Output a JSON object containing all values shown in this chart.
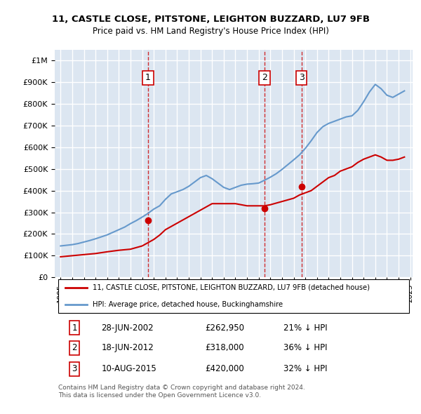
{
  "title": "11, CASTLE CLOSE, PITSTONE, LEIGHTON BUZZARD, LU7 9FB",
  "subtitle": "Price paid vs. HM Land Registry's House Price Index (HPI)",
  "ylabel_ticks": [
    "£0",
    "£100K",
    "£200K",
    "£300K",
    "£400K",
    "£500K",
    "£600K",
    "£700K",
    "£800K",
    "£900K",
    "£1M"
  ],
  "ytick_values": [
    0,
    100000,
    200000,
    300000,
    400000,
    500000,
    600000,
    700000,
    800000,
    900000,
    1000000
  ],
  "ylim": [
    0,
    1050000
  ],
  "sale_dates": [
    "2002-06-28",
    "2012-06-18",
    "2015-08-10"
  ],
  "sale_prices": [
    262950,
    318000,
    420000
  ],
  "sale_labels": [
    "1",
    "2",
    "3"
  ],
  "legend_line1": "11, CASTLE CLOSE, PITSTONE, LEIGHTON BUZZARD, LU7 9FB (detached house)",
  "legend_line2": "HPI: Average price, detached house, Buckinghamshire",
  "table_rows": [
    [
      "1",
      "28-JUN-2002",
      "£262,950",
      "21% ↓ HPI"
    ],
    [
      "2",
      "18-JUN-2012",
      "£318,000",
      "36% ↓ HPI"
    ],
    [
      "3",
      "10-AUG-2015",
      "£420,000",
      "32% ↓ HPI"
    ]
  ],
  "footnote": "Contains HM Land Registry data © Crown copyright and database right 2024.\nThis data is licensed under the Open Government Licence v3.0.",
  "red_color": "#cc0000",
  "blue_color": "#6699cc",
  "background_color": "#dce6f1",
  "plot_bg_color": "#dce6f1",
  "grid_color": "#ffffff",
  "hpi_years": [
    1995,
    1995.5,
    1996,
    1996.5,
    1997,
    1997.5,
    1998,
    1998.5,
    1999,
    1999.5,
    2000,
    2000.5,
    2001,
    2001.5,
    2002,
    2002.5,
    2003,
    2003.5,
    2004,
    2004.5,
    2005,
    2005.5,
    2006,
    2006.5,
    2007,
    2007.5,
    2008,
    2008.5,
    2009,
    2009.5,
    2010,
    2010.5,
    2011,
    2011.5,
    2012,
    2012.5,
    2013,
    2013.5,
    2014,
    2014.5,
    2015,
    2015.5,
    2016,
    2016.5,
    2017,
    2017.5,
    2018,
    2018.5,
    2019,
    2019.5,
    2020,
    2020.5,
    2021,
    2021.5,
    2022,
    2022.5,
    2023,
    2023.5,
    2024,
    2024.5
  ],
  "hpi_values": [
    145000,
    148000,
    151000,
    156000,
    163000,
    170000,
    178000,
    187000,
    196000,
    208000,
    220000,
    232000,
    248000,
    262000,
    278000,
    295000,
    315000,
    330000,
    360000,
    385000,
    395000,
    405000,
    420000,
    440000,
    460000,
    470000,
    455000,
    435000,
    415000,
    405000,
    415000,
    425000,
    430000,
    432000,
    435000,
    448000,
    462000,
    478000,
    498000,
    520000,
    542000,
    565000,
    595000,
    630000,
    668000,
    695000,
    710000,
    720000,
    730000,
    740000,
    745000,
    770000,
    810000,
    855000,
    890000,
    870000,
    840000,
    830000,
    845000,
    860000
  ],
  "price_years": [
    1995,
    1996,
    1997,
    1998,
    1999,
    2000,
    2001,
    2002,
    2002.5,
    2003,
    2003.5,
    2004,
    2005,
    2006,
    2007,
    2008,
    2009,
    2010,
    2011,
    2012,
    2012.5,
    2013,
    2014,
    2015,
    2015.5,
    2016,
    2016.5,
    2017,
    2017.5,
    2018,
    2018.5,
    2019,
    2019.5,
    2020,
    2020.5,
    2021,
    2021.5,
    2022,
    2022.5,
    2023,
    2023.5,
    2024,
    2024.5
  ],
  "price_values": [
    95000,
    100000,
    105000,
    110000,
    118000,
    125000,
    130000,
    145000,
    160000,
    175000,
    195000,
    220000,
    250000,
    280000,
    310000,
    340000,
    340000,
    340000,
    330000,
    330000,
    330000,
    335000,
    350000,
    365000,
    380000,
    390000,
    400000,
    420000,
    440000,
    460000,
    470000,
    490000,
    500000,
    510000,
    530000,
    545000,
    555000,
    565000,
    555000,
    540000,
    540000,
    545000,
    555000
  ]
}
